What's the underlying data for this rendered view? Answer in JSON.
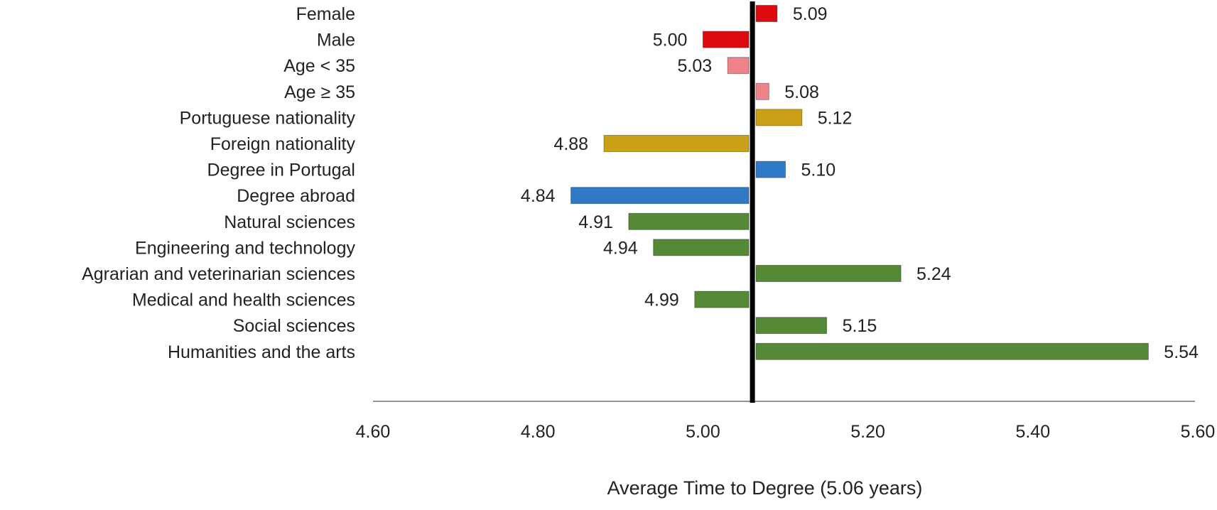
{
  "chart_data": {
    "type": "bar",
    "orientation": "horizontal",
    "xlabel": "Average Time to Degree (5.06 years)",
    "ylabel": "",
    "title": "",
    "xlim": [
      4.6,
      5.6
    ],
    "xticks": [
      "4.60",
      "4.80",
      "5.00",
      "5.20",
      "5.40",
      "5.60"
    ],
    "reference_line": 5.06,
    "grid": false,
    "categories": [
      "Female",
      "Male",
      "Age < 35",
      "Age ≥ 35",
      "Portuguese nationality",
      "Foreign nationality",
      "Degree in Portugal",
      "Degree abroad",
      "Natural sciences",
      "Engineering and technology",
      "Agrarian and veterinarian sciences",
      "Medical and health sciences",
      "Social sciences",
      "Humanities and the arts"
    ],
    "values": [
      5.09,
      5.0,
      5.03,
      5.08,
      5.12,
      4.88,
      5.1,
      4.84,
      4.91,
      4.94,
      5.24,
      4.99,
      5.15,
      5.54
    ],
    "value_labels": [
      "5.09",
      "5.00",
      "5.03",
      "5.08",
      "5.12",
      "4.88",
      "5.10",
      "4.84",
      "4.91",
      "4.94",
      "5.24",
      "4.99",
      "5.15",
      "5.54"
    ],
    "colors": [
      "#dd0a0f",
      "#dd0a0f",
      "#f0828a",
      "#f0828a",
      "#c9a016",
      "#c9a016",
      "#2f7ac6",
      "#2f7ac6",
      "#548a35",
      "#548a35",
      "#548a35",
      "#548a35",
      "#548a35",
      "#548a35"
    ]
  }
}
